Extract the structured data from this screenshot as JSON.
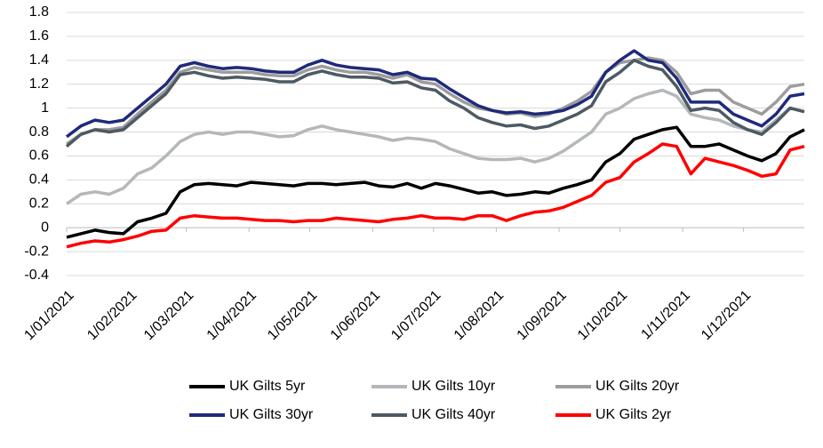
{
  "chart_data": {
    "type": "line",
    "x": [
      "2021-01-01",
      "2021-01-08",
      "2021-01-15",
      "2021-01-22",
      "2021-01-29",
      "2021-02-05",
      "2021-02-12",
      "2021-02-19",
      "2021-02-26",
      "2021-03-05",
      "2021-03-12",
      "2021-03-19",
      "2021-03-26",
      "2021-04-02",
      "2021-04-09",
      "2021-04-16",
      "2021-04-23",
      "2021-04-30",
      "2021-05-07",
      "2021-05-14",
      "2021-05-21",
      "2021-05-28",
      "2021-06-04",
      "2021-06-11",
      "2021-06-18",
      "2021-06-25",
      "2021-07-02",
      "2021-07-09",
      "2021-07-16",
      "2021-07-23",
      "2021-07-30",
      "2021-08-06",
      "2021-08-13",
      "2021-08-20",
      "2021-08-27",
      "2021-09-03",
      "2021-09-10",
      "2021-09-17",
      "2021-09-24",
      "2021-10-01",
      "2021-10-08",
      "2021-10-15",
      "2021-10-22",
      "2021-10-29",
      "2021-11-05",
      "2021-11-12",
      "2021-11-19",
      "2021-11-26",
      "2021-12-03",
      "2021-12-10",
      "2021-12-17",
      "2021-12-24",
      "2021-12-31"
    ],
    "series": [
      {
        "name": "UK Gilts 5yr",
        "color": "#000000",
        "values": [
          -0.08,
          -0.05,
          -0.02,
          -0.04,
          -0.05,
          0.05,
          0.08,
          0.12,
          0.3,
          0.36,
          0.37,
          0.36,
          0.35,
          0.38,
          0.37,
          0.36,
          0.35,
          0.37,
          0.37,
          0.36,
          0.37,
          0.38,
          0.35,
          0.34,
          0.37,
          0.33,
          0.37,
          0.35,
          0.32,
          0.29,
          0.3,
          0.27,
          0.28,
          0.3,
          0.29,
          0.33,
          0.36,
          0.4,
          0.55,
          0.62,
          0.74,
          0.78,
          0.82,
          0.84,
          0.68,
          0.68,
          0.7,
          0.65,
          0.6,
          0.56,
          0.62,
          0.76,
          0.82
        ]
      },
      {
        "name": "UK Gilts 10yr",
        "color": "#b4b8bb",
        "values": [
          0.2,
          0.28,
          0.3,
          0.28,
          0.33,
          0.45,
          0.5,
          0.6,
          0.72,
          0.78,
          0.8,
          0.78,
          0.8,
          0.8,
          0.78,
          0.76,
          0.77,
          0.82,
          0.85,
          0.82,
          0.8,
          0.78,
          0.76,
          0.73,
          0.75,
          0.74,
          0.72,
          0.66,
          0.62,
          0.58,
          0.57,
          0.57,
          0.58,
          0.55,
          0.58,
          0.64,
          0.72,
          0.8,
          0.95,
          1.0,
          1.08,
          1.12,
          1.15,
          1.1,
          0.95,
          0.92,
          0.9,
          0.85,
          0.82,
          0.8,
          0.9,
          1.0,
          0.97
        ]
      },
      {
        "name": "UK Gilts 20yr",
        "color": "#9d9d9d",
        "values": [
          0.7,
          0.78,
          0.82,
          0.82,
          0.84,
          0.95,
          1.05,
          1.15,
          1.3,
          1.34,
          1.32,
          1.3,
          1.3,
          1.3,
          1.28,
          1.27,
          1.27,
          1.32,
          1.35,
          1.32,
          1.3,
          1.3,
          1.28,
          1.25,
          1.28,
          1.22,
          1.2,
          1.12,
          1.05,
          1.0,
          0.98,
          0.95,
          0.96,
          0.93,
          0.95,
          1.0,
          1.06,
          1.14,
          1.3,
          1.38,
          1.4,
          1.42,
          1.4,
          1.3,
          1.12,
          1.15,
          1.15,
          1.05,
          1.0,
          0.95,
          1.05,
          1.18,
          1.2
        ]
      },
      {
        "name": "UK Gilts 30yr",
        "color": "#1f2a7a",
        "values": [
          0.76,
          0.85,
          0.9,
          0.88,
          0.9,
          1.0,
          1.1,
          1.2,
          1.35,
          1.38,
          1.35,
          1.33,
          1.34,
          1.33,
          1.31,
          1.3,
          1.3,
          1.36,
          1.4,
          1.36,
          1.34,
          1.33,
          1.32,
          1.28,
          1.3,
          1.25,
          1.24,
          1.16,
          1.09,
          1.02,
          0.98,
          0.96,
          0.97,
          0.95,
          0.96,
          0.98,
          1.03,
          1.1,
          1.3,
          1.4,
          1.48,
          1.4,
          1.38,
          1.25,
          1.05,
          1.05,
          1.05,
          0.95,
          0.9,
          0.85,
          0.95,
          1.1,
          1.12
        ]
      },
      {
        "name": "UK Gilts 40yr",
        "color": "#4d5a63",
        "values": [
          0.68,
          0.78,
          0.82,
          0.8,
          0.82,
          0.92,
          1.02,
          1.12,
          1.28,
          1.3,
          1.27,
          1.25,
          1.26,
          1.25,
          1.24,
          1.22,
          1.22,
          1.28,
          1.31,
          1.28,
          1.26,
          1.26,
          1.25,
          1.21,
          1.22,
          1.17,
          1.15,
          1.06,
          1.0,
          0.92,
          0.88,
          0.85,
          0.86,
          0.83,
          0.85,
          0.9,
          0.95,
          1.02,
          1.22,
          1.3,
          1.4,
          1.35,
          1.32,
          1.18,
          0.98,
          1.0,
          0.98,
          0.88,
          0.82,
          0.78,
          0.88,
          1.0,
          0.97
        ]
      },
      {
        "name": "UK Gilts 2yr",
        "color": "#ff0000",
        "values": [
          -0.16,
          -0.13,
          -0.11,
          -0.12,
          -0.1,
          -0.07,
          -0.03,
          -0.02,
          0.08,
          0.1,
          0.09,
          0.08,
          0.08,
          0.07,
          0.06,
          0.06,
          0.05,
          0.06,
          0.06,
          0.08,
          0.07,
          0.06,
          0.05,
          0.07,
          0.08,
          0.1,
          0.08,
          0.08,
          0.07,
          0.1,
          0.1,
          0.06,
          0.1,
          0.13,
          0.14,
          0.17,
          0.22,
          0.27,
          0.38,
          0.42,
          0.55,
          0.62,
          0.7,
          0.68,
          0.45,
          0.58,
          0.55,
          0.52,
          0.48,
          0.43,
          0.45,
          0.65,
          0.68
        ]
      }
    ],
    "xlim": [
      "2021-01-01",
      "2021-12-31"
    ],
    "xticks": [
      {
        "value": "2021-01-01",
        "label": "1/01/2021"
      },
      {
        "value": "2021-02-01",
        "label": "1/02/2021"
      },
      {
        "value": "2021-03-01",
        "label": "1/03/2021"
      },
      {
        "value": "2021-04-01",
        "label": "1/04/2021"
      },
      {
        "value": "2021-05-01",
        "label": "1/05/2021"
      },
      {
        "value": "2021-06-01",
        "label": "1/06/2021"
      },
      {
        "value": "2021-07-01",
        "label": "1/07/2021"
      },
      {
        "value": "2021-08-01",
        "label": "1/08/2021"
      },
      {
        "value": "2021-09-01",
        "label": "1/09/2021"
      },
      {
        "value": "2021-10-01",
        "label": "1/10/2021"
      },
      {
        "value": "2021-11-01",
        "label": "1/11/2021"
      },
      {
        "value": "2021-12-01",
        "label": "1/12/2021"
      }
    ],
    "ylim": [
      -0.4,
      1.8
    ],
    "yticks": [
      -0.4,
      -0.2,
      0,
      0.2,
      0.4,
      0.6,
      0.8,
      1,
      1.2,
      1.4,
      1.6,
      1.8
    ],
    "grid": true
  }
}
